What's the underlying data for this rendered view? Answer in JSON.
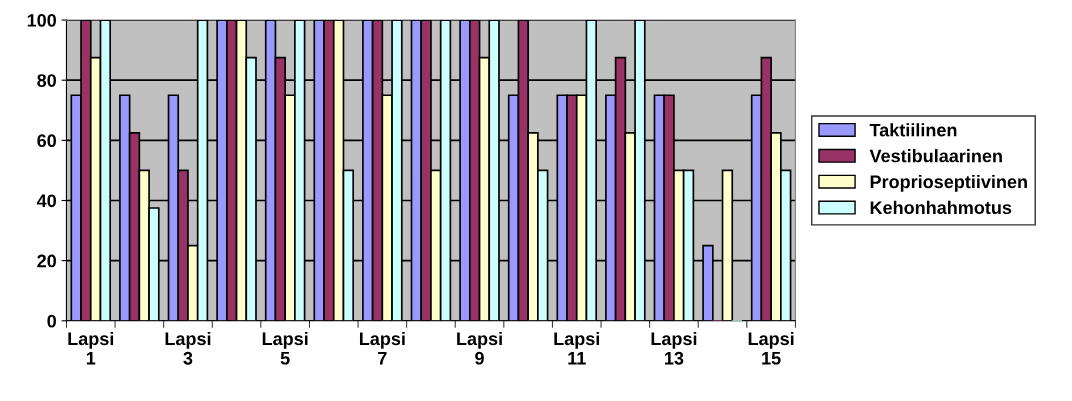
{
  "chart_data": {
    "type": "bar",
    "categories": [
      "Lapsi 1",
      null,
      "Lapsi 3",
      null,
      "Lapsi 5",
      null,
      "Lapsi 7",
      null,
      "Lapsi 9",
      null,
      "Lapsi 11",
      null,
      "Lapsi 13",
      null,
      "Lapsi 15"
    ],
    "series": [
      {
        "name": "Taktiilinen",
        "color": "#9999ff",
        "values": [
          75,
          75,
          75,
          100,
          100,
          100,
          100,
          100,
          100,
          75,
          75,
          75,
          75,
          25,
          75
        ]
      },
      {
        "name": "Vestibulaarinen",
        "color": "#993366",
        "values": [
          100,
          62.5,
          50,
          100,
          87.5,
          100,
          100,
          100,
          100,
          100,
          75,
          87.5,
          75,
          0,
          87.5
        ]
      },
      {
        "name": "Proprioseptiivinen",
        "color": "#ffffcc",
        "values": [
          87.5,
          50,
          25,
          100,
          75,
          100,
          75,
          50,
          87.5,
          62.5,
          75,
          62.5,
          50,
          50,
          62.5
        ]
      },
      {
        "name": "Kehonhahmotus",
        "color": "#ccffff",
        "values": [
          100,
          37.5,
          100,
          87.5,
          100,
          50,
          100,
          100,
          100,
          50,
          100,
          100,
          50,
          0,
          50
        ]
      }
    ],
    "ylim": [
      0,
      100
    ],
    "yticks": [
      0,
      20,
      40,
      60,
      80,
      100
    ],
    "grid": "y",
    "legend": "right"
  }
}
